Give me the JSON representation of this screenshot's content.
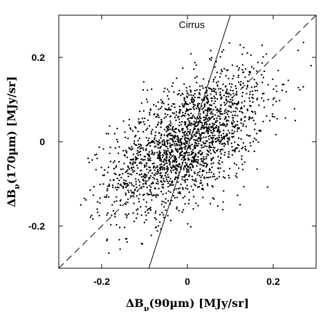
{
  "chart_data": {
    "type": "scatter",
    "title": "",
    "xlabel": {
      "prefix": "ΔB",
      "sub": "ν",
      "rest": "(90µm) [MJy/sr]"
    },
    "ylabel": {
      "prefix": "ΔB",
      "sub": "ν",
      "rest": "(170µm) [MJy/sr]"
    },
    "xlim": [
      -0.3,
      0.3
    ],
    "ylim": [
      -0.3,
      0.3
    ],
    "xticks": [
      -0.2,
      0,
      0.2
    ],
    "xtick_labels": [
      "-0.2",
      "0",
      "0.2"
    ],
    "yticks": [
      -0.2,
      0,
      0.2
    ],
    "ytick_labels": [
      "-0.2",
      "0",
      "0.2"
    ],
    "grid": false,
    "cloud": {
      "description_values": "Approximately 2000 points, correlated bivariate distribution",
      "n_points": 2000,
      "center": [
        0.0,
        0.0
      ],
      "sigma_x": 0.09,
      "sigma_y": 0.085,
      "correlation": 0.55,
      "x_range": [
        -0.26,
        0.3
      ],
      "y_range": [
        -0.27,
        0.24
      ]
    },
    "lines": [
      {
        "style": "solid",
        "label": "Cirrus",
        "points": [
          [
            -0.09,
            -0.3
          ],
          [
            0.1,
            0.3
          ]
        ]
      },
      {
        "style": "dashed",
        "label": "",
        "points": [
          [
            -0.3,
            -0.3
          ],
          [
            0.3,
            0.3
          ]
        ]
      }
    ],
    "annotations": [
      {
        "text": "Cirrus",
        "x": 0.01,
        "y": 0.27
      }
    ]
  }
}
